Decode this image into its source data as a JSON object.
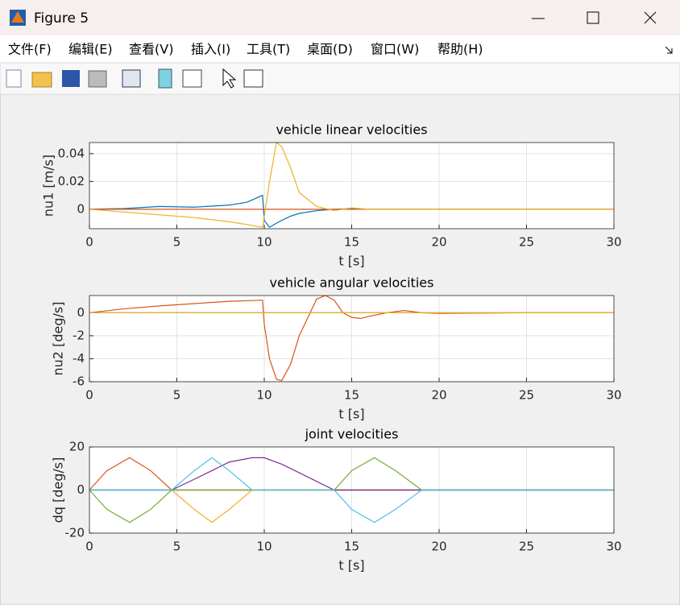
{
  "window": {
    "title": "Figure 5"
  },
  "menu": [
    "文件(F)",
    "编辑(E)",
    "查看(V)",
    "插入(I)",
    "工具(T)",
    "桌面(D)",
    "窗口(W)",
    "帮助(H)"
  ],
  "chart_data": [
    {
      "type": "line",
      "title": "vehicle linear velocities",
      "xlabel": "t [s]",
      "ylabel": "nu1 [m/s]",
      "x": [
        0,
        2,
        4,
        6,
        8,
        9,
        9.9,
        10,
        10.3,
        10.7,
        11,
        11.5,
        12,
        13,
        14,
        15,
        16,
        17,
        18,
        20,
        25,
        30
      ],
      "series": [
        {
          "color": "#0072bd",
          "values": [
            0,
            0.0005,
            0.002,
            0.0015,
            0.003,
            0.005,
            0.01,
            -0.008,
            -0.013,
            -0.01,
            -0.008,
            -0.005,
            -0.003,
            -0.001,
            0,
            0.0005,
            0,
            0,
            0,
            0,
            0,
            0
          ]
        },
        {
          "color": "#d95319",
          "values": [
            0,
            0,
            0,
            0,
            0,
            0,
            0,
            0,
            0,
            0,
            0,
            0,
            0,
            0,
            0,
            0,
            0,
            0,
            0,
            0,
            0,
            0
          ]
        },
        {
          "color": "#edb120",
          "values": [
            0,
            -0.002,
            -0.004,
            -0.006,
            -0.009,
            -0.011,
            -0.013,
            -0.005,
            0.02,
            0.048,
            0.045,
            0.03,
            0.012,
            0.002,
            -0.001,
            0.001,
            0,
            0,
            0,
            0,
            0,
            0
          ]
        }
      ],
      "xlim": [
        0,
        30
      ],
      "ylim": [
        -0.014,
        0.048
      ],
      "xticks": [
        0,
        5,
        10,
        15,
        20,
        25,
        30
      ],
      "yticks": [
        0,
        0.02,
        0.04
      ],
      "grid": true
    },
    {
      "type": "line",
      "title": "vehicle angular velocities",
      "xlabel": "t [s]",
      "ylabel": "nu2 [deg/s]",
      "x": [
        0,
        2,
        4,
        6,
        8,
        9,
        9.9,
        10,
        10.3,
        10.7,
        11,
        11.5,
        12,
        13,
        13.5,
        14,
        14.5,
        15,
        15.5,
        16,
        17,
        18,
        19,
        20,
        25,
        30
      ],
      "series": [
        {
          "color": "#0072bd",
          "values": [
            0,
            0,
            0,
            0,
            0,
            0,
            0,
            0,
            0,
            0,
            0,
            0,
            0,
            0,
            0,
            0,
            0,
            0,
            0,
            0,
            0,
            0,
            0,
            0,
            0,
            0
          ]
        },
        {
          "color": "#d95319",
          "values": [
            0,
            0.35,
            0.6,
            0.8,
            1.0,
            1.05,
            1.1,
            -1,
            -4,
            -5.8,
            -5.9,
            -4.5,
            -2,
            1.2,
            1.5,
            1.1,
            0,
            -0.4,
            -0.5,
            -0.3,
            0,
            0.2,
            0,
            -0.05,
            0,
            0
          ]
        },
        {
          "color": "#edb120",
          "values": [
            0,
            0,
            0,
            0,
            0,
            0,
            0,
            0,
            0,
            0,
            0,
            0,
            0,
            0,
            0,
            0,
            0,
            0,
            0,
            0,
            0,
            0,
            0,
            0,
            0,
            0
          ]
        }
      ],
      "xlim": [
        0,
        30
      ],
      "ylim": [
        -6,
        1.5
      ],
      "xticks": [
        0,
        5,
        10,
        15,
        20,
        25,
        30
      ],
      "yticks": [
        -6,
        -4,
        -2,
        0
      ],
      "grid": true
    },
    {
      "type": "line",
      "title": "joint velocities",
      "xlabel": "t [s]",
      "ylabel": "dq [deg/s]",
      "x": [
        0,
        1,
        2.3,
        3.5,
        4.7,
        6,
        7,
        8,
        9.3,
        10,
        11,
        12,
        13,
        14,
        15,
        16.3,
        17.5,
        19,
        20,
        25,
        30
      ],
      "series": [
        {
          "color": "#0072bd",
          "values": [
            0,
            0,
            0,
            0,
            0,
            0,
            0,
            0,
            0,
            0,
            0,
            0,
            0,
            0,
            0,
            0,
            0,
            0,
            0,
            0,
            0
          ]
        },
        {
          "color": "#d95319",
          "values": [
            0,
            9,
            15,
            9,
            0,
            0,
            0,
            0,
            0,
            0,
            0,
            0,
            0,
            0,
            0,
            0,
            0,
            0,
            0,
            0,
            0
          ]
        },
        {
          "color": "#edb120",
          "values": [
            0,
            0,
            0,
            0,
            0,
            -9,
            -15,
            -9,
            0,
            0,
            0,
            0,
            0,
            0,
            0,
            0,
            0,
            0,
            0,
            0,
            0
          ]
        },
        {
          "color": "#7e2f8e",
          "values": [
            0,
            0,
            0,
            0,
            0,
            5,
            9,
            13,
            15,
            15,
            12,
            8,
            4,
            0,
            0,
            0,
            0,
            0,
            0,
            0,
            0
          ]
        },
        {
          "color": "#77ac30",
          "values": [
            0,
            -9,
            -15,
            -9,
            0,
            0,
            0,
            0,
            0,
            0,
            0,
            0,
            0,
            0,
            9,
            15,
            9,
            0,
            0,
            0,
            0
          ]
        },
        {
          "color": "#4dbeee",
          "values": [
            0,
            0,
            0,
            0,
            0,
            9,
            15,
            9,
            0,
            0,
            0,
            0,
            0,
            0,
            -9,
            -15,
            -9,
            0,
            0,
            0,
            0
          ]
        }
      ],
      "xlim": [
        0,
        30
      ],
      "ylim": [
        -20,
        20
      ],
      "xticks": [
        0,
        5,
        10,
        15,
        20,
        25,
        30
      ],
      "yticks": [
        -20,
        0,
        20
      ],
      "grid": true
    }
  ]
}
